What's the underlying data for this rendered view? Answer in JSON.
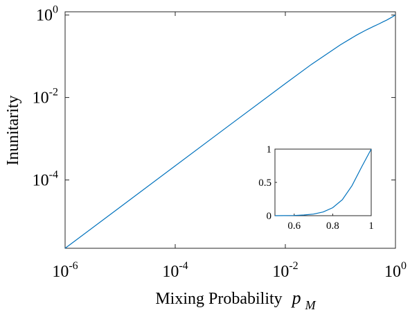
{
  "chart_data": [
    {
      "type": "line",
      "xlabel": "Mixing Probability",
      "xlabel_symbol": "p",
      "xlabel_subscript": "M",
      "ylabel": "Inunitarity",
      "xscale": "log",
      "yscale": "log",
      "xlim": [
        1e-06,
        1
      ],
      "ylim": [
        2.2e-06,
        1.2
      ],
      "xticks": [
        {
          "base": "10",
          "exp": "-6",
          "value": 1e-06
        },
        {
          "base": "10",
          "exp": "-4",
          "value": 0.0001
        },
        {
          "base": "10",
          "exp": "-2",
          "value": 0.01
        },
        {
          "base": "10",
          "exp": "0",
          "value": 1
        }
      ],
      "yticks": [
        {
          "base": "10",
          "exp": "-4",
          "value": 0.0001
        },
        {
          "base": "10",
          "exp": "-2",
          "value": 0.01
        },
        {
          "base": "10",
          "exp": "0",
          "value": 1
        }
      ],
      "grid": false,
      "series": [
        {
          "color": "#0072BD",
          "x": [
            1e-06,
            1e-05,
            0.0001,
            0.001,
            0.01,
            0.03,
            0.1,
            0.2,
            0.3,
            0.4,
            0.5,
            0.6,
            0.7,
            0.8,
            0.9,
            0.95,
            1.0
          ],
          "y": [
            2.2e-06,
            2.2e-05,
            0.00022,
            0.0022,
            0.0218,
            0.064,
            0.19,
            0.33,
            0.44,
            0.53,
            0.61,
            0.69,
            0.76,
            0.84,
            0.92,
            0.965,
            1.0
          ]
        }
      ]
    },
    {
      "type": "line",
      "role": "inset",
      "xlim": [
        0.5,
        1
      ],
      "ylim": [
        0,
        1
      ],
      "xticks": [
        "0.6",
        "0.8",
        "1"
      ],
      "yticks": [
        "0",
        "0.5",
        "1"
      ],
      "grid": false,
      "series": [
        {
          "color": "#0072BD",
          "x": [
            0.5,
            0.55,
            0.6,
            0.65,
            0.7,
            0.75,
            0.8,
            0.85,
            0.9,
            0.95,
            1.0
          ],
          "y": [
            0,
            0.001,
            0.003,
            0.01,
            0.024,
            0.055,
            0.12,
            0.24,
            0.45,
            0.73,
            1.0
          ]
        }
      ]
    }
  ]
}
